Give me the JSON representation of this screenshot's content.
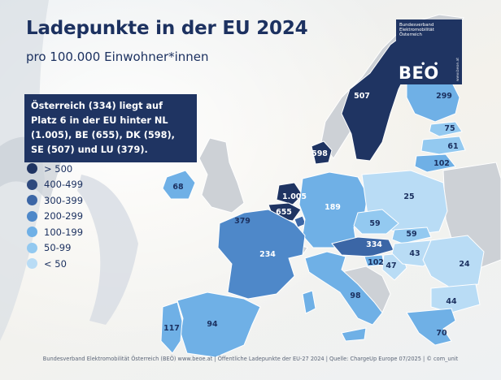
{
  "title": "Ladepunkte in der EU 2024",
  "subtitle": "pro 100.000 Einwohner*innen",
  "note": "Österreich (334) liegt auf Platz 6 in der EU hinter NL (1.005), BE (655), DK (598), SE (507) und LU (379).",
  "legend": [
    {
      "label": "> 500",
      "color": "#1f3462"
    },
    {
      "label": "400-499",
      "color": "#2f4a7e"
    },
    {
      "label": "300-399",
      "color": "#3b66a6"
    },
    {
      "label": "200-299",
      "color": "#4e88c9"
    },
    {
      "label": "100-199",
      "color": "#6fb0e6"
    },
    {
      "label": "50-99",
      "color": "#93c9f0"
    },
    {
      "label": "< 50",
      "color": "#b9dcf5"
    }
  ],
  "logo": {
    "org_line1": "Bundesverband",
    "org_line2": "Elektromobilität",
    "org_line3": "Österreich",
    "dots": "• •",
    "mark": "BEO",
    "url": "www.beoe.at"
  },
  "values": {
    "se": "507",
    "fi": "299",
    "ee": "75",
    "lv": "61",
    "lt": "102",
    "dk": "598",
    "ie": "68",
    "nl": "1.005",
    "be": "655",
    "lu": "379",
    "de": "189",
    "pl": "25",
    "cz": "59",
    "sk": "59",
    "at": "334",
    "si": "102",
    "hr": "47",
    "hu": "43",
    "ro": "24",
    "fr": "234",
    "it": "98",
    "bg": "44",
    "gr": "70",
    "es": "94",
    "pt": "117"
  },
  "colors": {
    "dark": "#1f3462",
    "mid": "#3b66a6",
    "med": "#4e88c9",
    "light": "#6fb0e6",
    "pale": "#93c9f0",
    "palest": "#b9dcf5",
    "gray": "#cdd1d6"
  },
  "footer": "Bundesverband Elektromobilität Österreich (BEÖ) www.beoe.at | Öffentliche Ladepunkte der EU-27 2024 | Quelle: ChargeUp Europe 07/2025 | © com_unit"
}
